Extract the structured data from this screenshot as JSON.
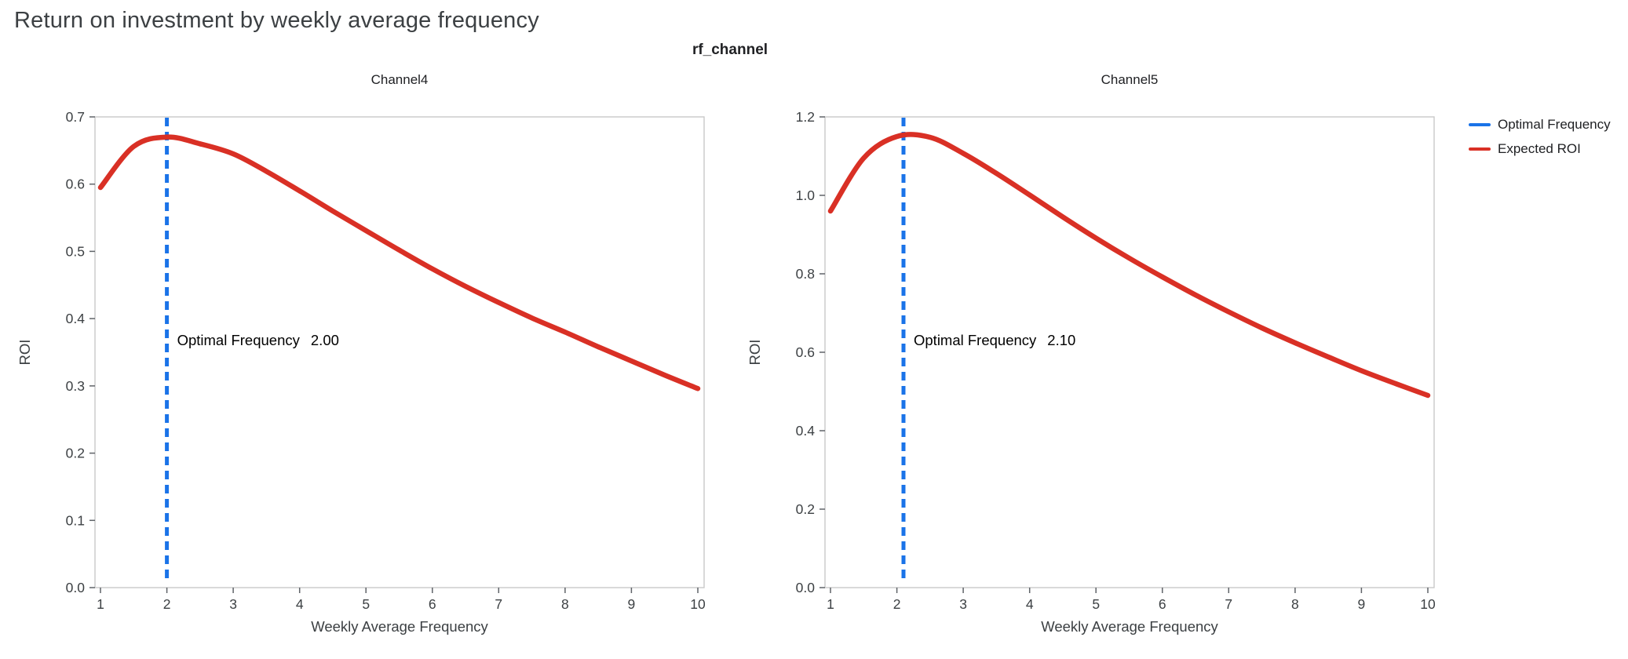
{
  "page": {
    "title": "Return on investment by weekly average frequency",
    "suptitle": "rf_channel"
  },
  "legend": {
    "items": [
      {
        "label": "Optimal Frequency",
        "color": "#1a73e8"
      },
      {
        "label": "Expected ROI",
        "color": "#d93025"
      }
    ]
  },
  "colors": {
    "optimal_frequency_line": "#1a73e8",
    "expected_roi_line": "#d93025",
    "spine": "#c9c9c9",
    "tick": "#5f6368",
    "tick_text": "#3c4043",
    "axis_label_text": "#3c4043",
    "subplot_title_text": "#202124",
    "annotation_text": "#000000"
  },
  "chart_data": [
    {
      "type": "line",
      "title": "Channel4",
      "xlabel": "Weekly Average Frequency",
      "ylabel": "ROI",
      "xlim": [
        1,
        10
      ],
      "ylim": [
        0.0,
        0.7
      ],
      "xticks": [
        "1",
        "2",
        "3",
        "4",
        "5",
        "6",
        "7",
        "8",
        "9",
        "10"
      ],
      "yticks": [
        "0.0",
        "0.1",
        "0.2",
        "0.3",
        "0.4",
        "0.5",
        "0.6",
        "0.7"
      ],
      "grid": false,
      "optimal_frequency": 2.0,
      "annotation": {
        "label": "Optimal Frequency",
        "value": "2.00"
      },
      "series": [
        {
          "name": "Expected ROI",
          "x": [
            1.0,
            1.5,
            2.0,
            2.5,
            3.0,
            3.5,
            4.0,
            4.5,
            5.0,
            5.5,
            6.0,
            6.5,
            7.0,
            7.5,
            8.0,
            8.5,
            9.0,
            9.5,
            10.0
          ],
          "y": [
            0.595,
            0.656,
            0.67,
            0.66,
            0.645,
            0.619,
            0.59,
            0.56,
            0.531,
            0.502,
            0.474,
            0.448,
            0.424,
            0.401,
            0.38,
            0.358,
            0.337,
            0.316,
            0.296
          ]
        }
      ]
    },
    {
      "type": "line",
      "title": "Channel5",
      "xlabel": "Weekly Average Frequency",
      "ylabel": "ROI",
      "xlim": [
        1,
        10
      ],
      "ylim": [
        0.0,
        1.2
      ],
      "xticks": [
        "1",
        "2",
        "3",
        "4",
        "5",
        "6",
        "7",
        "8",
        "9",
        "10"
      ],
      "yticks": [
        "0.0",
        "0.2",
        "0.4",
        "0.6",
        "0.8",
        "1.0",
        "1.2"
      ],
      "grid": false,
      "optimal_frequency": 2.1,
      "annotation": {
        "label": "Optimal Frequency",
        "value": "2.10"
      },
      "series": [
        {
          "name": "Expected ROI",
          "x": [
            1.0,
            1.5,
            2.0,
            2.5,
            3.0,
            3.5,
            4.0,
            4.5,
            5.0,
            5.5,
            6.0,
            6.5,
            7.0,
            7.5,
            8.0,
            8.5,
            9.0,
            9.5,
            10.0
          ],
          "y": [
            0.96,
            1.095,
            1.15,
            1.148,
            1.107,
            1.056,
            1.001,
            0.945,
            0.891,
            0.84,
            0.792,
            0.746,
            0.703,
            0.662,
            0.624,
            0.588,
            0.553,
            0.521,
            0.49
          ]
        }
      ]
    }
  ]
}
